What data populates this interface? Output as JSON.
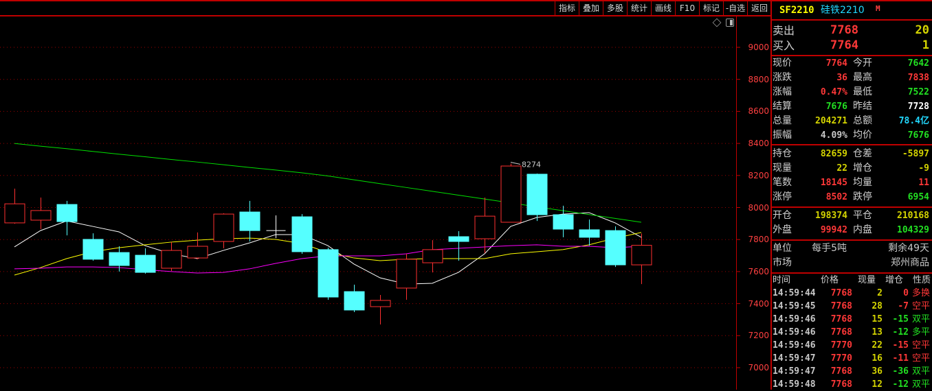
{
  "toolbar": {
    "buttons": [
      "指标",
      "叠加",
      "多股",
      "统计",
      "画线",
      "F10",
      "标记",
      "-自选",
      "返回"
    ]
  },
  "chart_icons": [
    "diamond-icon",
    "panel-toggle-icon"
  ],
  "chart_data": {
    "type": "candlestick",
    "y_ticks": [
      "9000",
      "8800",
      "8600",
      "8400",
      "8200",
      "8000",
      "7800",
      "7600",
      "7400",
      "7200",
      "7000"
    ],
    "ylim": [
      7000,
      9000
    ],
    "grid": true,
    "high_annotation": "8274",
    "candles": [
      {
        "o": 7904,
        "h": 8118,
        "l": 7899,
        "c": 8023
      },
      {
        "o": 7921,
        "h": 8062,
        "l": 7865,
        "c": 7981
      },
      {
        "o": 8019,
        "h": 8041,
        "l": 7826,
        "c": 7912
      },
      {
        "o": 7801,
        "h": 7839,
        "l": 7668,
        "c": 7677
      },
      {
        "o": 7719,
        "h": 7758,
        "l": 7600,
        "c": 7638
      },
      {
        "o": 7702,
        "h": 7745,
        "l": 7587,
        "c": 7595
      },
      {
        "o": 7621,
        "h": 7784,
        "l": 7604,
        "c": 7732
      },
      {
        "o": 7685,
        "h": 7844,
        "l": 7677,
        "c": 7758
      },
      {
        "o": 7788,
        "h": 7964,
        "l": 7745,
        "c": 7959
      },
      {
        "o": 7972,
        "h": 8041,
        "l": 7788,
        "c": 7856
      },
      {
        "o": 7856,
        "h": 7951,
        "l": 7809,
        "c": 7856
      },
      {
        "o": 7942,
        "h": 7959,
        "l": 7711,
        "c": 7724
      },
      {
        "o": 7737,
        "h": 7749,
        "l": 7424,
        "c": 7441
      },
      {
        "o": 7475,
        "h": 7518,
        "l": 7347,
        "c": 7360
      },
      {
        "o": 7381,
        "h": 7454,
        "l": 7270,
        "c": 7420
      },
      {
        "o": 7497,
        "h": 7711,
        "l": 7424,
        "c": 7677
      },
      {
        "o": 7655,
        "h": 7796,
        "l": 7595,
        "c": 7737
      },
      {
        "o": 7818,
        "h": 7852,
        "l": 7668,
        "c": 7788
      },
      {
        "o": 7805,
        "h": 8062,
        "l": 7715,
        "c": 7946
      },
      {
        "o": 7908,
        "h": 8274,
        "l": 7908,
        "c": 8259
      },
      {
        "o": 8208,
        "h": 8212,
        "l": 7916,
        "c": 7955
      },
      {
        "o": 7955,
        "h": 8011,
        "l": 7814,
        "c": 7865
      },
      {
        "o": 7861,
        "h": 7925,
        "l": 7762,
        "c": 7814
      },
      {
        "o": 7856,
        "h": 7882,
        "l": 7629,
        "c": 7642
      },
      {
        "o": 7642,
        "h": 7838,
        "l": 7522,
        "c": 7764
      }
    ],
    "series": [
      {
        "color": "#ffffff",
        "values": [
          7754,
          7856,
          7916,
          7882,
          7848,
          7762,
          7711,
          7681,
          7732,
          7779,
          7831,
          7831,
          7762,
          7647,
          7561,
          7522,
          7527,
          7595,
          7711,
          7882,
          7938,
          7959,
          7968,
          7904,
          7814
        ]
      },
      {
        "color": "#ffff00",
        "values": [
          7578,
          7625,
          7681,
          7724,
          7749,
          7767,
          7784,
          7796,
          7805,
          7809,
          7801,
          7775,
          7719,
          7685,
          7668,
          7677,
          7681,
          7681,
          7681,
          7711,
          7724,
          7737,
          7767,
          7809,
          7844
        ]
      },
      {
        "color": "#ff00ff",
        "values": [
          7617,
          7621,
          7629,
          7629,
          7625,
          7612,
          7600,
          7591,
          7595,
          7617,
          7651,
          7681,
          7698,
          7698,
          7698,
          7711,
          7737,
          7745,
          7754,
          7762,
          7767,
          7758,
          7758,
          7749,
          7758
        ]
      },
      {
        "color": "#00e000",
        "values": [
          8400,
          8383,
          8367,
          8350,
          8333,
          8317,
          8300,
          8284,
          8267,
          8250,
          8234,
          8217,
          8197,
          8173,
          8149,
          8125,
          8101,
          8077,
          8053,
          8029,
          8004,
          7980,
          7956,
          7932,
          7908
        ]
      }
    ],
    "colors": {
      "up": "#ff3030",
      "down": "#55ffff",
      "doji": "#ffffff",
      "grid": "#a00000",
      "axis": "#c00000"
    }
  },
  "quote": {
    "code": "SF2210",
    "name": "硅铁2210",
    "badge": "M",
    "ask_label": "卖出",
    "ask_price": "7768",
    "ask_vol": "20",
    "bid_label": "买入",
    "bid_price": "7764",
    "bid_vol": "1",
    "block1": [
      {
        "l1": "现价",
        "v1": "7764",
        "c1": "red",
        "l2": "今开",
        "v2": "7642",
        "c2": "grn"
      },
      {
        "l1": "涨跌",
        "v1": "36",
        "c1": "red",
        "l2": "最高",
        "v2": "7838",
        "c2": "red"
      },
      {
        "l1": "涨幅",
        "v1": "0.47%",
        "c1": "red",
        "l2": "最低",
        "v2": "7522",
        "c2": "grn"
      },
      {
        "l1": "结算",
        "v1": "7676",
        "c1": "grn",
        "l2": "昨结",
        "v2": "7728",
        "c2": "wht"
      },
      {
        "l1": "总量",
        "v1": "204271",
        "c1": "yel",
        "l2": "总额",
        "v2": "78.4亿",
        "c2": "cyn"
      },
      {
        "l1": "振幅",
        "v1": "4.09%",
        "c1": "gry",
        "l2": "均价",
        "v2": "7676",
        "c2": "grn"
      }
    ],
    "block2": [
      {
        "l1": "持仓",
        "v1": "82659",
        "c1": "yel",
        "l2": "仓差",
        "v2": "-5897",
        "c2": "yel"
      },
      {
        "l1": "现量",
        "v1": "22",
        "c1": "yel",
        "l2": "增仓",
        "v2": "-9",
        "c2": "yel"
      },
      {
        "l1": "笔数",
        "v1": "18145",
        "c1": "red",
        "l2": "均量",
        "v2": "11",
        "c2": "red"
      },
      {
        "l1": "涨停",
        "v1": "8502",
        "c1": "red",
        "l2": "跌停",
        "v2": "6954",
        "c2": "grn"
      }
    ],
    "block3": [
      {
        "l1": "开仓",
        "v1": "198374",
        "c1": "yel",
        "l2": "平仓",
        "v2": "210168",
        "c2": "yel"
      },
      {
        "l1": "外盘",
        "v1": "99942",
        "c1": "red",
        "l2": "内盘",
        "v2": "104329",
        "c2": "grn"
      }
    ],
    "unit_label": "单位",
    "unit_value": "每手5吨",
    "remaining": "剩余49天",
    "market_label": "市场",
    "market_value": "郑州商品"
  },
  "ticks": {
    "headers": [
      "时间",
      "价格",
      "现量",
      "增仓",
      "性质"
    ],
    "rows": [
      {
        "time": "14:59:44",
        "price": "7768",
        "vol": "2",
        "oi": "0",
        "oic": "red",
        "nature": "多换",
        "nc": "red"
      },
      {
        "time": "14:59:45",
        "price": "7768",
        "vol": "28",
        "oi": "-7",
        "oic": "red",
        "nature": "空平",
        "nc": "red"
      },
      {
        "time": "14:59:46",
        "price": "7768",
        "vol": "15",
        "oi": "-15",
        "oic": "grn",
        "nature": "双平",
        "nc": "grn"
      },
      {
        "time": "14:59:46",
        "price": "7768",
        "vol": "13",
        "oi": "-12",
        "oic": "grn",
        "nature": "多平",
        "nc": "grn"
      },
      {
        "time": "14:59:46",
        "price": "7770",
        "vol": "22",
        "oi": "-15",
        "oic": "red",
        "nature": "空平",
        "nc": "red"
      },
      {
        "time": "14:59:47",
        "price": "7770",
        "vol": "16",
        "oi": "-11",
        "oic": "red",
        "nature": "空平",
        "nc": "red"
      },
      {
        "time": "14:59:47",
        "price": "7768",
        "vol": "36",
        "oi": "-36",
        "oic": "grn",
        "nature": "双平",
        "nc": "grn"
      },
      {
        "time": "14:59:48",
        "price": "7768",
        "vol": "12",
        "oi": "-12",
        "oic": "grn",
        "nature": "双平",
        "nc": "grn"
      }
    ]
  }
}
